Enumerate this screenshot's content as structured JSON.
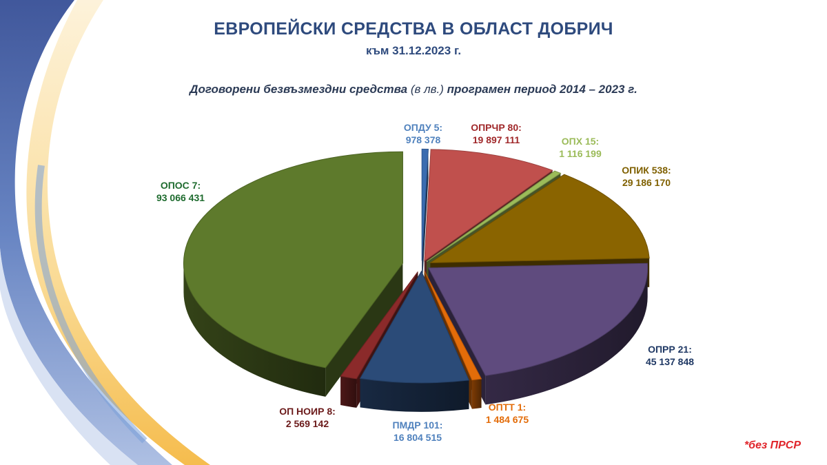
{
  "header": {
    "title": "ЕВРОПЕЙСКИ СРЕДСТВА В ОБЛАСТ ДОБРИЧ",
    "date": "към 31.12.2023 г.",
    "subtitle_main": "Договорени безвъзмездни средства",
    "subtitle_unit": "(в лв.)",
    "subtitle_period": "програмен период 2014 – 2023 г."
  },
  "note": "*без ПРСР",
  "chart_data": {
    "type": "pie",
    "title": "Договорени безвъзмездни средства (в лв.) програмен период 2014 – 2023 г.",
    "unit": "лв.",
    "slices": [
      {
        "label": "ОПДУ 5:",
        "value": 978378,
        "value_text": "978 378",
        "color": "#3a6cb0",
        "label_color": "#4f81bd"
      },
      {
        "label": "ОПРЧР  80:",
        "value": 19897111,
        "value_text": "19 897 111",
        "color": "#c0504d",
        "label_color": "#a0282a"
      },
      {
        "label": "ОПХ 15:",
        "value": 1116199,
        "value_text": "1 116 199",
        "color": "#9bbb59",
        "label_color": "#9bbb59"
      },
      {
        "label": "ОПИК  538:",
        "value": 29186170,
        "value_text": "29 186 170",
        "color": "#8a6400",
        "label_color": "#7f6000"
      },
      {
        "label": "ОПРР  21:",
        "value": 45137848,
        "value_text": "45 137 848",
        "color": "#5f4b7e",
        "label_color": "#1f3864"
      },
      {
        "label": "ОПТТ 1:",
        "value": 1484675,
        "value_text": "1 484 675",
        "color": "#e36c09",
        "label_color": "#e36c09"
      },
      {
        "label": "ПМДР 101:",
        "value": 16804515,
        "value_text": "16 804 515",
        "color": "#2b4b78",
        "label_color": "#4f81bd"
      },
      {
        "label": "ОП НОИР 8:",
        "value": 2569142,
        "value_text": "2 569 142",
        "color": "#8b2a2a",
        "label_color": "#6b1a1a"
      },
      {
        "label": "ОПОС 7:",
        "value": 93066431,
        "value_text": "93 066 431",
        "color": "#5e7a2c",
        "label_color": "#1e6b2e"
      }
    ]
  }
}
